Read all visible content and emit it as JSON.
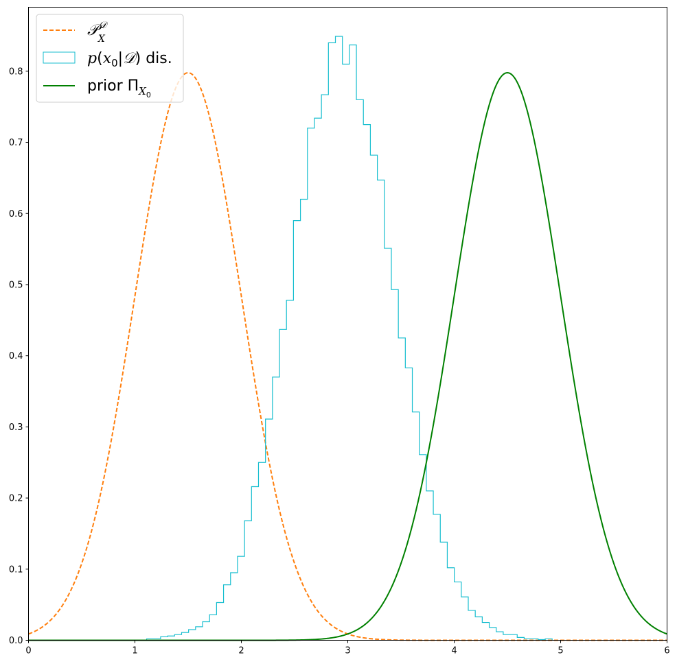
{
  "chart_data": {
    "type": "line",
    "title": "",
    "xlabel": "",
    "ylabel": "",
    "xlim": [
      0,
      6
    ],
    "ylim": [
      0,
      0.89
    ],
    "xticks": [
      "0",
      "1",
      "2",
      "3",
      "4",
      "5",
      "6"
    ],
    "yticks": [
      "0.0",
      "0.1",
      "0.2",
      "0.3",
      "0.4",
      "0.5",
      "0.6",
      "0.7",
      "0.8"
    ],
    "grid": false,
    "legend_position": "top-left",
    "series": [
      {
        "name": "P_X^D",
        "kind": "line",
        "style": "dashed",
        "color": "#ff7f0e",
        "distribution": "normal",
        "mean": 1.5,
        "std": 0.5
      },
      {
        "name": "p(x0|D) dis.",
        "kind": "histogram-step",
        "color": "#17becf",
        "bin_width": 0.0657,
        "bin_edges_start": 1.11,
        "values": [
          0.002,
          0.002,
          0.005,
          0.006,
          0.008,
          0.011,
          0.015,
          0.019,
          0.026,
          0.036,
          0.053,
          0.078,
          0.095,
          0.118,
          0.168,
          0.216,
          0.25,
          0.311,
          0.37,
          0.437,
          0.478,
          0.59,
          0.62,
          0.72,
          0.734,
          0.767,
          0.84,
          0.849,
          0.81,
          0.837,
          0.76,
          0.725,
          0.682,
          0.647,
          0.551,
          0.493,
          0.425,
          0.383,
          0.321,
          0.261,
          0.21,
          0.177,
          0.138,
          0.102,
          0.082,
          0.061,
          0.042,
          0.033,
          0.025,
          0.018,
          0.012,
          0.008,
          0.008,
          0.004,
          0.002,
          0.002,
          0.001,
          0.002
        ]
      },
      {
        "name": "prior Π_X0",
        "kind": "line",
        "style": "solid",
        "color": "#008000",
        "distribution": "normal",
        "mean": 4.5,
        "std": 0.5
      }
    ]
  }
}
